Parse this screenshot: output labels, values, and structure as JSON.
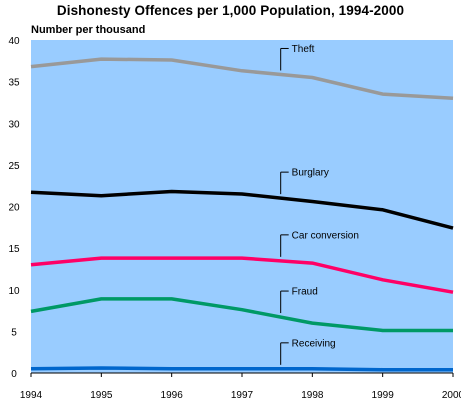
{
  "chart_data": {
    "type": "line",
    "title": "Dishonesty Offences per 1,000 Population, 1994-2000",
    "ylabel": "Number per thousand",
    "xlabel": "",
    "x": [
      1994,
      1995,
      1996,
      1997,
      1998,
      1999,
      2000
    ],
    "ylim": [
      0,
      40
    ],
    "yticks": [
      0,
      5,
      10,
      15,
      20,
      25,
      30,
      35,
      40
    ],
    "grid": false,
    "background": "#99ccff",
    "series": [
      {
        "name": "Theft",
        "color": "#999999",
        "values": [
          36.8,
          37.7,
          37.6,
          36.3,
          35.5,
          33.5,
          33.0
        ]
      },
      {
        "name": "Burglary",
        "color": "#000000",
        "values": [
          21.7,
          21.3,
          21.8,
          21.5,
          20.6,
          19.6,
          17.4
        ]
      },
      {
        "name": "Car conversion",
        "color": "#ff0066",
        "values": [
          13.0,
          13.8,
          13.8,
          13.8,
          13.2,
          11.2,
          9.7
        ]
      },
      {
        "name": "Fraud",
        "color": "#009966",
        "values": [
          7.4,
          8.9,
          8.9,
          7.6,
          6.0,
          5.1,
          5.1
        ]
      },
      {
        "name": "Receiving",
        "color": "#0066cc",
        "values": [
          0.5,
          0.6,
          0.5,
          0.5,
          0.5,
          0.4,
          0.4
        ]
      }
    ]
  }
}
